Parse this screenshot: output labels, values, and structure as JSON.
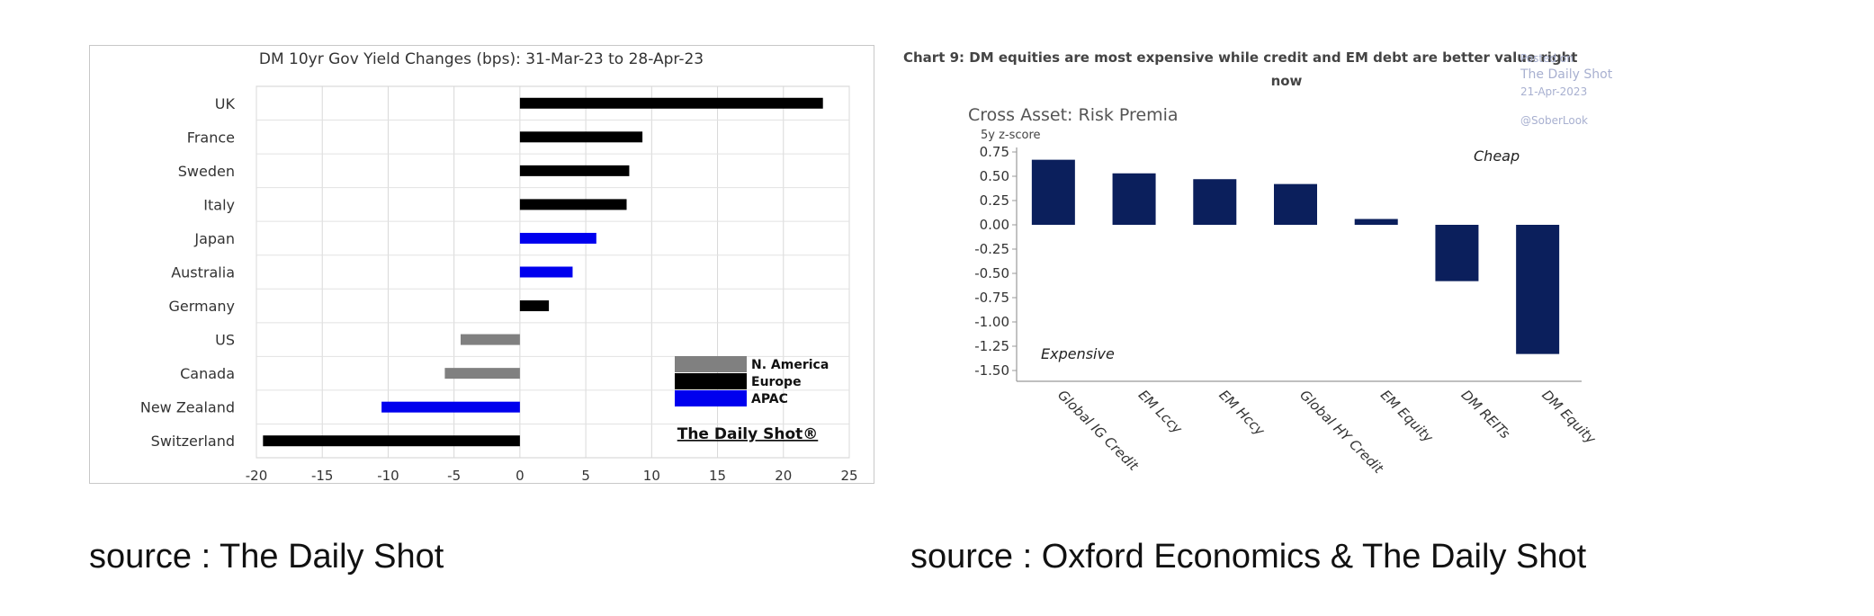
{
  "left_chart": {
    "chart_data": {
      "type": "bar",
      "orientation": "horizontal",
      "title": "DM 10yr Gov Yield Changes (bps): 31-Mar-23 to 28-Apr-23",
      "categories": [
        "UK",
        "France",
        "Sweden",
        "Italy",
        "Japan",
        "Australia",
        "Germany",
        "US",
        "Canada",
        "New Zealand",
        "Switzerland"
      ],
      "values": [
        23,
        9.3,
        8.3,
        8.1,
        5.8,
        4.0,
        2.2,
        -4.5,
        -5.7,
        -10.5,
        -19.5
      ],
      "groups": [
        "Europe",
        "Europe",
        "Europe",
        "Europe",
        "APAC",
        "APAC",
        "Europe",
        "N. America",
        "N. America",
        "APAC",
        "Europe"
      ],
      "xlim": [
        -20,
        25
      ],
      "xticks": [
        "-20",
        "-15",
        "-10",
        "-5",
        "0",
        "5",
        "10",
        "15",
        "20",
        "25"
      ],
      "grid": true,
      "legend": [
        {
          "name": "N. America",
          "color": "#808080"
        },
        {
          "name": "Europe",
          "color": "#000000"
        },
        {
          "name": "APAC",
          "color": "#0000ee"
        }
      ],
      "legend_position": "bottom-right",
      "watermark": "The Daily Shot®"
    }
  },
  "right_chart": {
    "chart_data": {
      "type": "bar",
      "caption": "Chart 9: DM equities are most expensive while credit and EM debt are better value right now",
      "title": "Cross Asset: Risk Premia",
      "ylabel": "5y z-score",
      "categories": [
        "Global IG Credit",
        "EM Lccy",
        "EM Hccy",
        "Global HY Credit",
        "EM Equity",
        "DM REITs",
        "DM Equity"
      ],
      "values": [
        0.67,
        0.53,
        0.47,
        0.42,
        0.06,
        -0.58,
        -1.33
      ],
      "ylim": [
        -1.6,
        0.8
      ],
      "yticks": [
        "0.75",
        "0.50",
        "0.25",
        "0.00",
        "-0.25",
        "-0.50",
        "-0.75",
        "-1.00",
        "-1.25",
        "-1.50"
      ],
      "bar_color": "#0b1f5c",
      "annotations": {
        "top": "Cheap",
        "bottom": "Expensive"
      },
      "watermark_lines": [
        "Posted on",
        "The Daily Shot",
        "21-Apr-2023",
        "",
        "@SoberLook"
      ],
      "grid": false
    }
  },
  "sources": {
    "left": "source : The Daily Shot",
    "right": "source : Oxford Economics & The Daily Shot"
  }
}
